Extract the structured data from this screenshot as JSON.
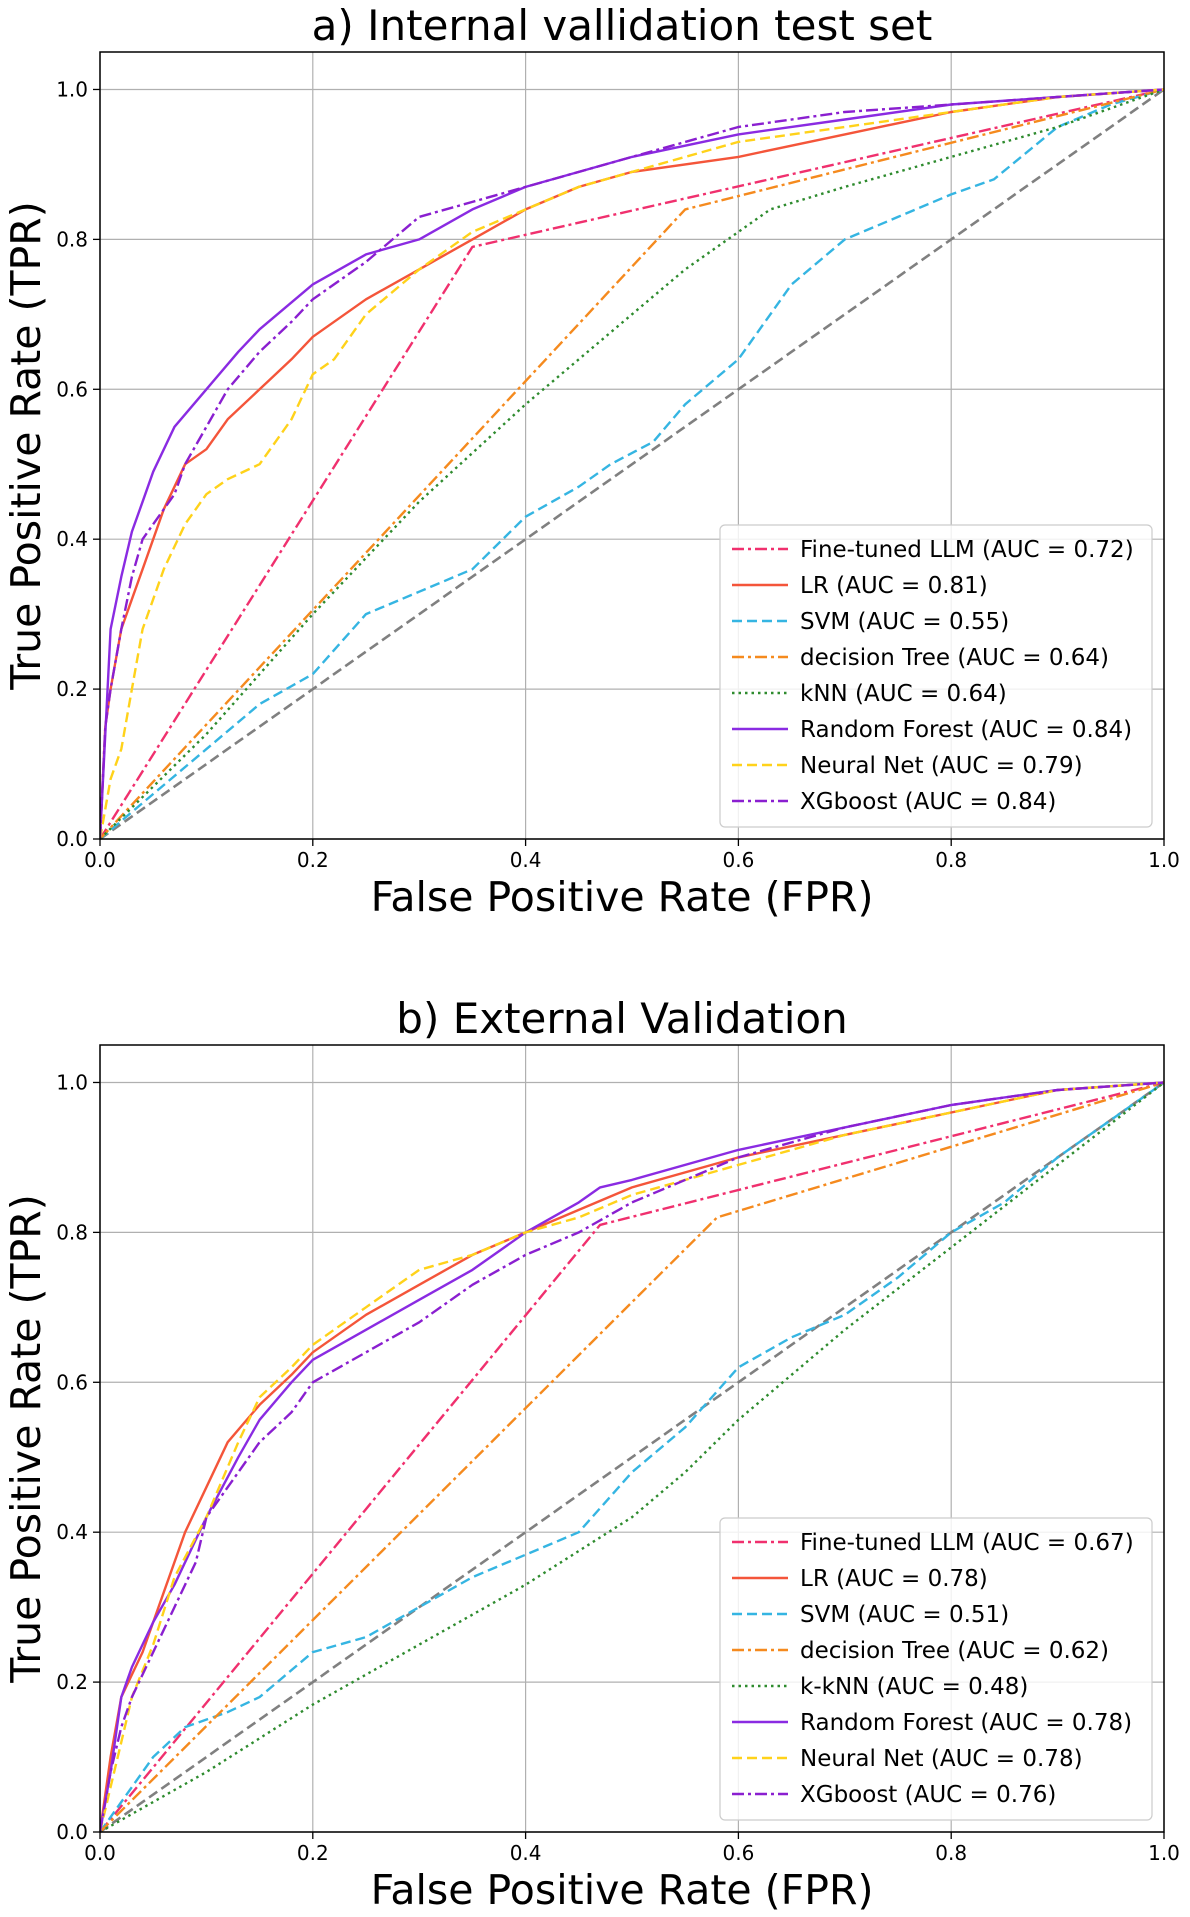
{
  "chart_data": [
    {
      "type": "line",
      "title": "a) Internal vallidation test set",
      "xlabel": "False Positive Rate (FPR)",
      "ylabel": "True Positive Rate (TPR)",
      "xlim": [
        0.0,
        1.0
      ],
      "ylim": [
        0.0,
        1.05
      ],
      "xticks": [
        "0.0",
        "0.2",
        "0.4",
        "0.6",
        "0.8",
        "1.0"
      ],
      "yticks": [
        "0.0",
        "0.2",
        "0.4",
        "0.6",
        "0.8",
        "1.0"
      ],
      "grid": true,
      "legend_position": "lower-right",
      "chance_line": {
        "x": [
          0,
          1
        ],
        "y": [
          0,
          1
        ],
        "color": "#808080",
        "dash": "dashed"
      },
      "series": [
        {
          "name": "Fine-tuned LLM (AUC = 0.72)",
          "color": "#f0306e",
          "dash": "dashdot",
          "x": [
            0,
            0.35,
            1.0
          ],
          "y": [
            0,
            0.79,
            1.0
          ]
        },
        {
          "name": "LR (AUC = 0.81)",
          "color": "#f4553a",
          "dash": "solid",
          "x": [
            0,
            0.005,
            0.01,
            0.02,
            0.03,
            0.04,
            0.05,
            0.06,
            0.07,
            0.08,
            0.1,
            0.12,
            0.15,
            0.18,
            0.2,
            0.25,
            0.3,
            0.35,
            0.4,
            0.45,
            0.5,
            0.6,
            0.7,
            0.8,
            0.9,
            1.0
          ],
          "y": [
            0,
            0.15,
            0.2,
            0.28,
            0.32,
            0.36,
            0.4,
            0.44,
            0.47,
            0.5,
            0.52,
            0.56,
            0.6,
            0.64,
            0.67,
            0.72,
            0.76,
            0.8,
            0.84,
            0.87,
            0.89,
            0.91,
            0.94,
            0.97,
            0.99,
            1.0
          ]
        },
        {
          "name": "SVM (AUC = 0.55)",
          "color": "#35b5e2",
          "dash": "dashed",
          "x": [
            0,
            0.05,
            0.1,
            0.15,
            0.2,
            0.25,
            0.3,
            0.35,
            0.4,
            0.45,
            0.48,
            0.52,
            0.55,
            0.6,
            0.65,
            0.7,
            0.75,
            0.8,
            0.84,
            0.9,
            0.95,
            1.0
          ],
          "y": [
            0,
            0.06,
            0.12,
            0.18,
            0.22,
            0.3,
            0.33,
            0.36,
            0.43,
            0.47,
            0.5,
            0.53,
            0.58,
            0.64,
            0.74,
            0.8,
            0.83,
            0.86,
            0.88,
            0.95,
            0.98,
            1.0
          ]
        },
        {
          "name": "decision Tree (AUC = 0.64)",
          "color": "#f58a1e",
          "dash": "dashdot",
          "x": [
            0,
            0.55,
            1.0
          ],
          "y": [
            0,
            0.84,
            1.0
          ]
        },
        {
          "name": "kNN (AUC = 0.64)",
          "color": "#2e8b2e",
          "dash": "dotted",
          "x": [
            0,
            0.1,
            0.2,
            0.3,
            0.4,
            0.5,
            0.55,
            0.63,
            0.7,
            0.8,
            0.9,
            1.0
          ],
          "y": [
            0,
            0.14,
            0.3,
            0.45,
            0.58,
            0.7,
            0.76,
            0.84,
            0.87,
            0.91,
            0.95,
            1.0
          ]
        },
        {
          "name": "Random Forest (AUC = 0.84)",
          "color": "#8a2be2",
          "dash": "solid",
          "x": [
            0,
            0.01,
            0.02,
            0.03,
            0.04,
            0.05,
            0.07,
            0.1,
            0.13,
            0.15,
            0.2,
            0.25,
            0.3,
            0.35,
            0.4,
            0.5,
            0.6,
            0.7,
            0.8,
            0.9,
            1.0
          ],
          "y": [
            0,
            0.28,
            0.35,
            0.41,
            0.45,
            0.49,
            0.55,
            0.6,
            0.65,
            0.68,
            0.74,
            0.78,
            0.8,
            0.84,
            0.87,
            0.91,
            0.94,
            0.96,
            0.98,
            0.99,
            1.0
          ]
        },
        {
          "name": "Neural Net (AUC = 0.79)",
          "color": "#ffd21a",
          "dash": "dashed",
          "x": [
            0,
            0.01,
            0.02,
            0.03,
            0.04,
            0.05,
            0.06,
            0.08,
            0.1,
            0.12,
            0.15,
            0.18,
            0.2,
            0.22,
            0.25,
            0.3,
            0.35,
            0.4,
            0.45,
            0.5,
            0.6,
            0.7,
            0.8,
            0.9,
            1.0
          ],
          "y": [
            0,
            0.08,
            0.12,
            0.2,
            0.28,
            0.32,
            0.36,
            0.42,
            0.46,
            0.48,
            0.5,
            0.56,
            0.62,
            0.64,
            0.7,
            0.76,
            0.81,
            0.84,
            0.87,
            0.89,
            0.93,
            0.95,
            0.97,
            0.99,
            1.0
          ]
        },
        {
          "name": "XGboost (AUC = 0.84)",
          "color": "#8a1fd0",
          "dash": "dashdot",
          "x": [
            0,
            0.005,
            0.01,
            0.02,
            0.03,
            0.04,
            0.05,
            0.07,
            0.08,
            0.1,
            0.12,
            0.15,
            0.18,
            0.2,
            0.25,
            0.3,
            0.35,
            0.4,
            0.5,
            0.6,
            0.7,
            0.8,
            0.9,
            1.0
          ],
          "y": [
            0,
            0.15,
            0.2,
            0.28,
            0.35,
            0.4,
            0.42,
            0.46,
            0.5,
            0.55,
            0.6,
            0.65,
            0.69,
            0.72,
            0.77,
            0.83,
            0.85,
            0.87,
            0.91,
            0.95,
            0.97,
            0.98,
            0.99,
            1.0
          ]
        }
      ]
    },
    {
      "type": "line",
      "title": "b) External Validation",
      "xlabel": "False Positive Rate (FPR)",
      "ylabel": "True Positive Rate (TPR)",
      "xlim": [
        0.0,
        1.0
      ],
      "ylim": [
        0.0,
        1.05
      ],
      "xticks": [
        "0.0",
        "0.2",
        "0.4",
        "0.6",
        "0.8",
        "1.0"
      ],
      "yticks": [
        "0.0",
        "0.2",
        "0.4",
        "0.6",
        "0.8",
        "1.0"
      ],
      "grid": true,
      "legend_position": "lower-right",
      "chance_line": {
        "x": [
          0,
          1
        ],
        "y": [
          0,
          1
        ],
        "color": "#808080",
        "dash": "dashed"
      },
      "series": [
        {
          "name": "Fine-tuned LLM (AUC = 0.67)",
          "color": "#f0306e",
          "dash": "dashdot",
          "x": [
            0,
            0.47,
            1.0
          ],
          "y": [
            0,
            0.81,
            1.0
          ]
        },
        {
          "name": "LR (AUC = 0.78)",
          "color": "#f4553a",
          "dash": "solid",
          "x": [
            0,
            0.01,
            0.02,
            0.03,
            0.04,
            0.05,
            0.06,
            0.08,
            0.1,
            0.12,
            0.15,
            0.18,
            0.2,
            0.25,
            0.3,
            0.35,
            0.4,
            0.45,
            0.5,
            0.6,
            0.7,
            0.8,
            0.9,
            1.0
          ],
          "y": [
            0,
            0.1,
            0.18,
            0.21,
            0.24,
            0.28,
            0.32,
            0.4,
            0.46,
            0.52,
            0.57,
            0.61,
            0.64,
            0.69,
            0.73,
            0.77,
            0.8,
            0.83,
            0.86,
            0.9,
            0.93,
            0.96,
            0.99,
            1.0
          ]
        },
        {
          "name": "SVM (AUC = 0.51)",
          "color": "#35b5e2",
          "dash": "dashed",
          "x": [
            0,
            0.05,
            0.08,
            0.12,
            0.15,
            0.2,
            0.25,
            0.3,
            0.35,
            0.4,
            0.45,
            0.5,
            0.55,
            0.6,
            0.65,
            0.7,
            0.75,
            0.8,
            0.85,
            0.9,
            0.95,
            1.0
          ],
          "y": [
            0,
            0.1,
            0.14,
            0.16,
            0.18,
            0.24,
            0.26,
            0.3,
            0.34,
            0.37,
            0.4,
            0.48,
            0.54,
            0.62,
            0.66,
            0.69,
            0.74,
            0.8,
            0.84,
            0.9,
            0.95,
            1.0
          ]
        },
        {
          "name": "decision Tree (AUC = 0.62)",
          "color": "#f58a1e",
          "dash": "dashdot",
          "x": [
            0,
            0.58,
            1.0
          ],
          "y": [
            0,
            0.82,
            1.0
          ]
        },
        {
          "name": "k-kNN (AUC = 0.48)",
          "color": "#2e8b2e",
          "dash": "dotted",
          "x": [
            0,
            0.1,
            0.2,
            0.3,
            0.4,
            0.5,
            0.55,
            0.6,
            0.7,
            0.8,
            0.9,
            1.0
          ],
          "y": [
            0,
            0.08,
            0.17,
            0.25,
            0.33,
            0.42,
            0.48,
            0.55,
            0.67,
            0.78,
            0.89,
            1.0
          ]
        },
        {
          "name": "Random Forest (AUC = 0.78)",
          "color": "#8a2be2",
          "dash": "solid",
          "x": [
            0,
            0.01,
            0.02,
            0.03,
            0.05,
            0.07,
            0.1,
            0.13,
            0.15,
            0.18,
            0.2,
            0.25,
            0.3,
            0.35,
            0.4,
            0.45,
            0.47,
            0.5,
            0.6,
            0.7,
            0.8,
            0.9,
            1.0
          ],
          "y": [
            0,
            0.08,
            0.18,
            0.22,
            0.28,
            0.33,
            0.42,
            0.5,
            0.55,
            0.6,
            0.63,
            0.67,
            0.71,
            0.75,
            0.8,
            0.84,
            0.86,
            0.87,
            0.91,
            0.94,
            0.97,
            0.99,
            1.0
          ]
        },
        {
          "name": "Neural Net (AUC = 0.78)",
          "color": "#ffd21a",
          "dash": "dashed",
          "x": [
            0,
            0.01,
            0.02,
            0.03,
            0.05,
            0.07,
            0.1,
            0.13,
            0.15,
            0.18,
            0.2,
            0.25,
            0.3,
            0.35,
            0.4,
            0.45,
            0.5,
            0.6,
            0.7,
            0.8,
            0.9,
            1.0
          ],
          "y": [
            0,
            0.06,
            0.12,
            0.18,
            0.25,
            0.34,
            0.42,
            0.52,
            0.58,
            0.62,
            0.65,
            0.7,
            0.75,
            0.77,
            0.8,
            0.82,
            0.85,
            0.89,
            0.93,
            0.96,
            0.99,
            1.0
          ]
        },
        {
          "name": "XGboost (AUC = 0.76)",
          "color": "#8a1fd0",
          "dash": "dashdot",
          "x": [
            0,
            0.01,
            0.02,
            0.03,
            0.05,
            0.07,
            0.09,
            0.1,
            0.12,
            0.15,
            0.18,
            0.2,
            0.25,
            0.3,
            0.35,
            0.4,
            0.45,
            0.5,
            0.6,
            0.7,
            0.8,
            0.9,
            1.0
          ],
          "y": [
            0,
            0.08,
            0.14,
            0.18,
            0.24,
            0.3,
            0.36,
            0.42,
            0.46,
            0.52,
            0.56,
            0.6,
            0.64,
            0.68,
            0.73,
            0.77,
            0.8,
            0.84,
            0.9,
            0.94,
            0.97,
            0.99,
            1.0
          ]
        }
      ]
    }
  ]
}
